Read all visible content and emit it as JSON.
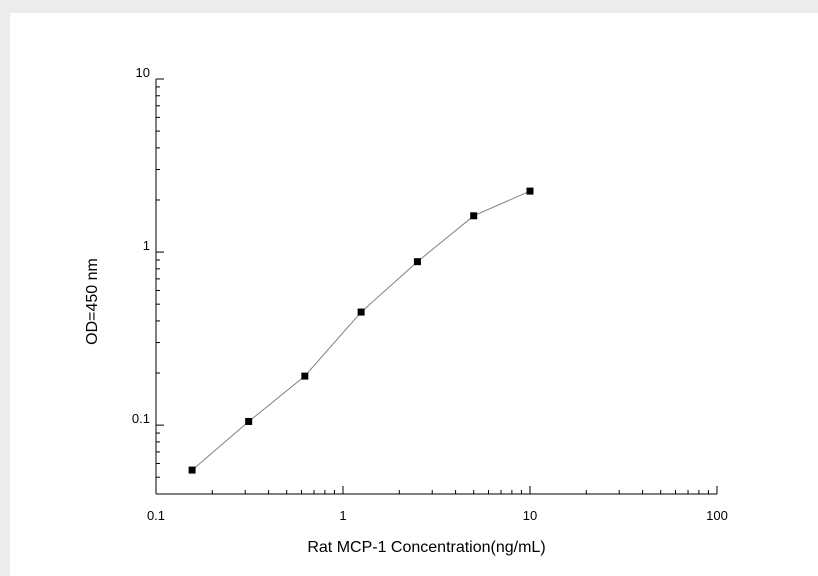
{
  "chart_data": {
    "type": "line",
    "title": "",
    "xlabel": "Rat MCP-1  Concentration(ng/mL)",
    "ylabel": "OD=450 nm",
    "xscale": "log",
    "yscale": "log",
    "xlim": [
      0.1,
      100
    ],
    "ylim": [
      0.04,
      10
    ],
    "x_ticks": [
      0.1,
      1,
      10,
      100
    ],
    "x_tick_labels": [
      "0.1",
      "1",
      "10",
      "100"
    ],
    "y_ticks": [
      0.1,
      1,
      10
    ],
    "y_tick_labels": [
      "0.1",
      "1",
      "10"
    ],
    "grid": false,
    "legend": "none",
    "series": [
      {
        "marker": "square",
        "color": "#000000",
        "line_color": "#808080",
        "x": [
          0.156,
          0.313,
          0.625,
          1.25,
          2.5,
          5,
          10
        ],
        "y": [
          0.055,
          0.105,
          0.192,
          0.45,
          0.88,
          1.62,
          2.25
        ]
      }
    ]
  }
}
